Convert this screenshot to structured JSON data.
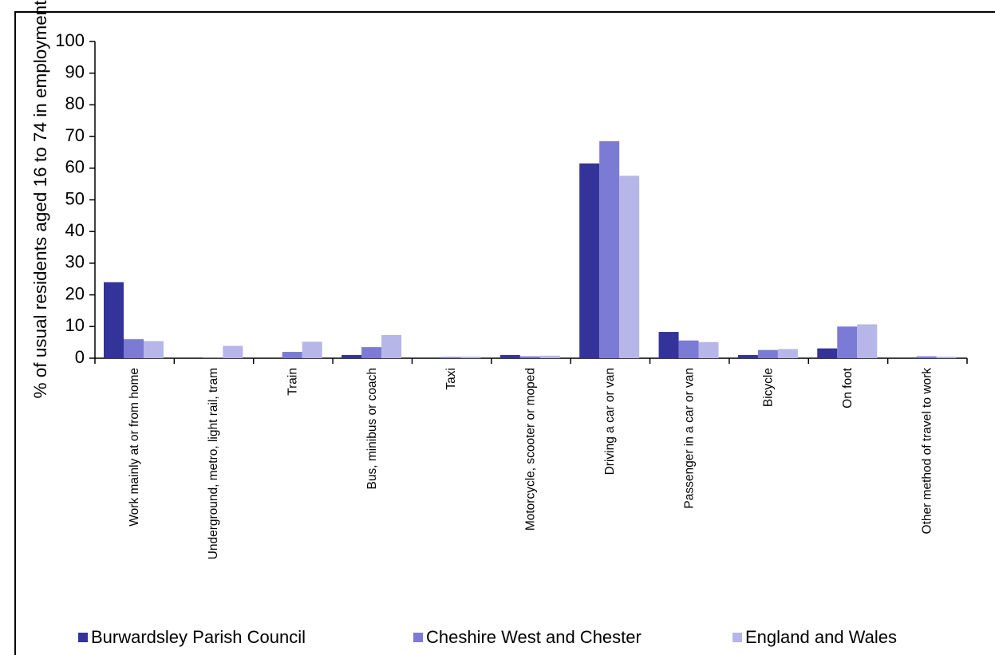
{
  "chart_data": {
    "type": "bar",
    "title": "",
    "xlabel": "",
    "ylabel": "% of usual residents aged 16 to 74 in employment",
    "ylim": [
      0,
      100
    ],
    "yticks": [
      0,
      10,
      20,
      30,
      40,
      50,
      60,
      70,
      80,
      90,
      100
    ],
    "grid": false,
    "legend_position": "bottom",
    "categories": [
      "Work mainly at or from home",
      "Underground, metro, light rail, tram",
      "Train",
      "Bus, minibus or coach",
      "Taxi",
      "Motorcycle, scooter or moped",
      "Driving a car or van",
      "Passenger in a car or van",
      "Bicycle",
      "On foot",
      "Other method of travel to work"
    ],
    "series": [
      {
        "name": "Burwardsley Parish Council",
        "color": "#333399",
        "values": [
          24,
          0,
          0,
          1,
          0,
          1,
          61.5,
          8.3,
          1,
          3.1,
          0
        ]
      },
      {
        "name": "Cheshire West and Chester",
        "color": "#7B7BD5",
        "values": [
          6,
          0.1,
          2,
          3.5,
          0.4,
          0.6,
          68.5,
          5.6,
          2.6,
          10,
          0.6
        ]
      },
      {
        "name": "England and Wales",
        "color": "#B6B6E8",
        "values": [
          5.4,
          3.9,
          5.2,
          7.3,
          0.5,
          0.8,
          57.6,
          5.1,
          2.9,
          10.7,
          0.5
        ]
      }
    ]
  }
}
